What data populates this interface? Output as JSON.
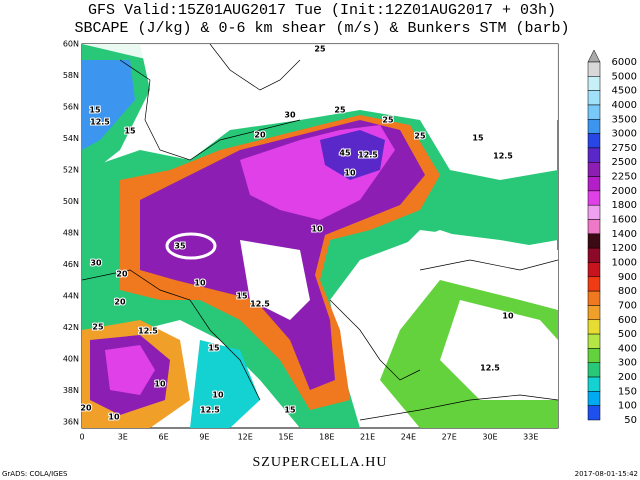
{
  "header": {
    "line1": "GFS Valid:15Z01AUG2017 Tue (Init:12Z01AUG2017 + 03h)",
    "line2": "SBCAPE (J/kg) & 0-6 km shear (m/s) & Bunkers STM (barb)"
  },
  "map": {
    "lat_labels": [
      "60N",
      "58N",
      "56N",
      "54N",
      "52N",
      "50N",
      "48N",
      "46N",
      "44N",
      "42N",
      "40N",
      "38N",
      "36N"
    ],
    "lon_labels": [
      "0",
      "3E",
      "6E",
      "9E",
      "12E",
      "15E",
      "18E",
      "21E",
      "24E",
      "27E",
      "30E",
      "33E"
    ],
    "contour_labels": [
      "15",
      "12.5",
      "15",
      "25",
      "30",
      "25",
      "20",
      "25",
      "45",
      "12.5",
      "10",
      "25",
      "15",
      "12.5",
      "35",
      "10",
      "30",
      "20",
      "10",
      "15",
      "12.5",
      "20",
      "25",
      "12.5",
      "15",
      "10",
      "12.5",
      "10",
      "15",
      "10",
      "20",
      "10",
      "12.5"
    ]
  },
  "colorbar": {
    "labels": [
      "6000",
      "5000",
      "4500",
      "4000",
      "3500",
      "3000",
      "2750",
      "2500",
      "2250",
      "2000",
      "1800",
      "1600",
      "1400",
      "1200",
      "1000",
      "900",
      "800",
      "700",
      "600",
      "500",
      "400",
      "300",
      "200",
      "150",
      "100",
      "50"
    ],
    "colors": [
      "#d8d8d8",
      "#c8f0f8",
      "#a0e0f8",
      "#78c8f8",
      "#3c96f0",
      "#2846e6",
      "#5a28c8",
      "#8c1eb4",
      "#b41ec8",
      "#e040e8",
      "#f0a0f0",
      "#f078c8",
      "#3c0a14",
      "#8c0a28",
      "#c8141e",
      "#f03c14",
      "#f0781e",
      "#f0a028",
      "#e6dc32",
      "#b4e646",
      "#64d23c",
      "#28c878",
      "#14d2d2",
      "#00aaf0",
      "#1e50f0"
    ]
  },
  "footer": {
    "site": "SZUPERCELLA.HU",
    "left": "GrADS: COLA/IGES",
    "right": "2017-08-01-15:42"
  }
}
